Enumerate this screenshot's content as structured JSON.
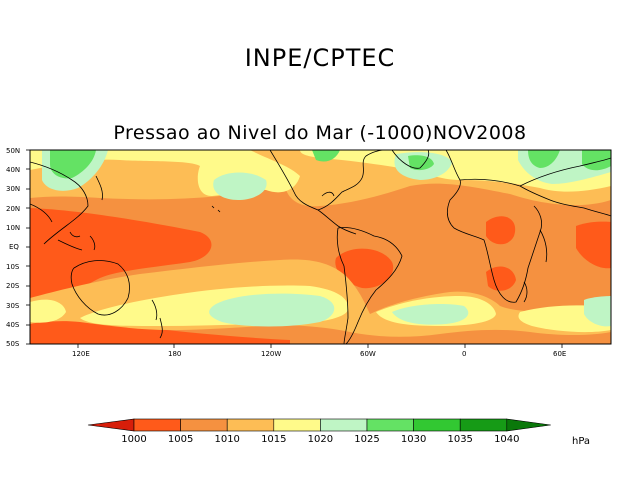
{
  "header": {
    "org": "INPE/CPTEC",
    "title": "Pressao ao Nivel do Mar (-1000)NOV2008"
  },
  "map": {
    "lat_labels": [
      "50N",
      "40N",
      "30N",
      "20N",
      "10N",
      "EQ",
      "10S",
      "20S",
      "30S",
      "40S",
      "50S"
    ],
    "lon_labels": [
      "120E",
      "180",
      "120W",
      "60W",
      "0",
      "60E"
    ]
  },
  "colorbar": {
    "levels": [
      "1000",
      "1005",
      "1010",
      "1015",
      "1020",
      "1025",
      "1030",
      "1035",
      "1040"
    ],
    "colors": [
      "#d71e0a",
      "#ff5a1a",
      "#f59140",
      "#fdbd55",
      "#fffa8a",
      "#bff5c5",
      "#64e264",
      "#32c832",
      "#169b16",
      "#0a780a"
    ],
    "unit": "hPa"
  }
}
